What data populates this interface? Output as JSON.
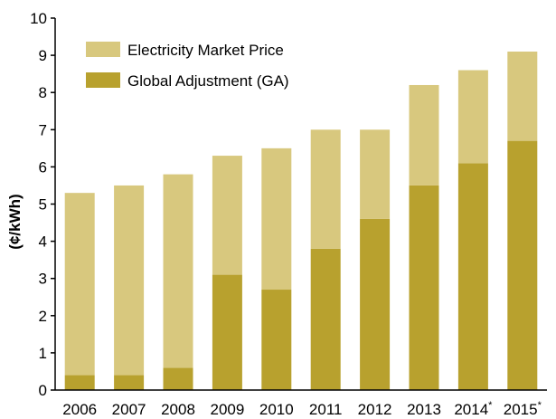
{
  "chart_data": {
    "type": "bar",
    "stacked": true,
    "ylabel": "(¢/kWh)",
    "ylim": [
      0,
      10
    ],
    "yticks": [
      0,
      1,
      2,
      3,
      4,
      5,
      6,
      7,
      8,
      9,
      10
    ],
    "categories": [
      "2006",
      "2007",
      "2008",
      "2009",
      "2010",
      "2011",
      "2012",
      "2013",
      "2014",
      "2015"
    ],
    "category_marks": [
      "",
      "",
      "",
      "",
      "",
      "",
      "",
      "",
      "*",
      "*"
    ],
    "totals": [
      5.3,
      5.5,
      5.8,
      6.3,
      6.5,
      7.0,
      7.0,
      8.2,
      8.6,
      9.1
    ],
    "series": [
      {
        "name": "Global Adjustment (GA)",
        "color": "#b8a12e",
        "values": [
          0.4,
          0.4,
          0.6,
          3.1,
          2.7,
          3.8,
          4.6,
          5.5,
          6.1,
          6.7
        ]
      },
      {
        "name": "Electricity Market Price",
        "color": "#d8c87e",
        "values": [
          4.9,
          5.1,
          5.2,
          3.2,
          3.8,
          3.2,
          2.4,
          2.7,
          2.5,
          2.4
        ]
      }
    ],
    "legend": {
      "placement": "top-left",
      "entries": [
        "Electricity Market Price",
        "Global Adjustment (GA)"
      ]
    },
    "grid": false
  }
}
